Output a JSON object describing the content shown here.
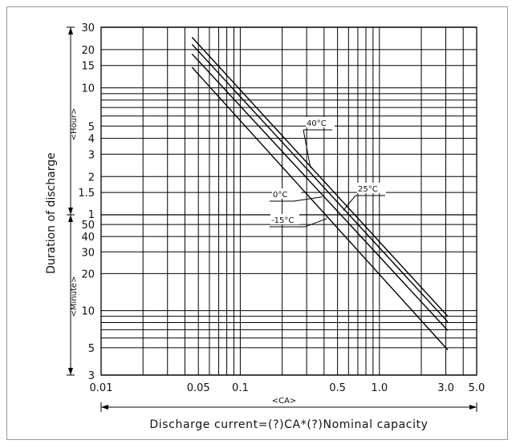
{
  "chart_data": {
    "type": "line",
    "title": "",
    "x_scale": "log",
    "y_scale": "log",
    "xlim": [
      0.01,
      5.0
    ],
    "x_tick_labels": [
      "0.01",
      "0.05",
      "0.1",
      "0.5",
      "1.0",
      "3.0",
      "5.0"
    ],
    "x_unit_label": "<CA>",
    "xlabel": "Discharge current=(?)CA*(?)Nominal capacity",
    "ylabel": "Duration of discharge",
    "hour_section": {
      "unit_label": "<Hour>",
      "tick_labels": [
        "30",
        "20",
        "15",
        "10",
        "5",
        "4",
        "3",
        "2",
        "1.5",
        "1"
      ]
    },
    "minute_section": {
      "unit_label": "<Minute>",
      "tick_labels": [
        "50",
        "40",
        "30",
        "20",
        "10",
        "5",
        "3"
      ]
    },
    "grid": true,
    "series": [
      {
        "name": "40°C",
        "current_ca": [
          0.045,
          3.1
        ],
        "duration_hours": [
          25.0,
          0.15
        ]
      },
      {
        "name": "25°C",
        "current_ca": [
          0.045,
          3.1
        ],
        "duration_hours": [
          22.0,
          0.135
        ]
      },
      {
        "name": "0°C",
        "current_ca": [
          0.045,
          3.1
        ],
        "duration_hours": [
          18.5,
          0.115
        ]
      },
      {
        "name": "-15°C",
        "current_ca": [
          0.045,
          3.1
        ],
        "duration_hours": [
          14.5,
          0.08
        ]
      }
    ],
    "annotation_labels": [
      "40°C",
      "25°C",
      "0°C",
      "-15°C"
    ]
  }
}
